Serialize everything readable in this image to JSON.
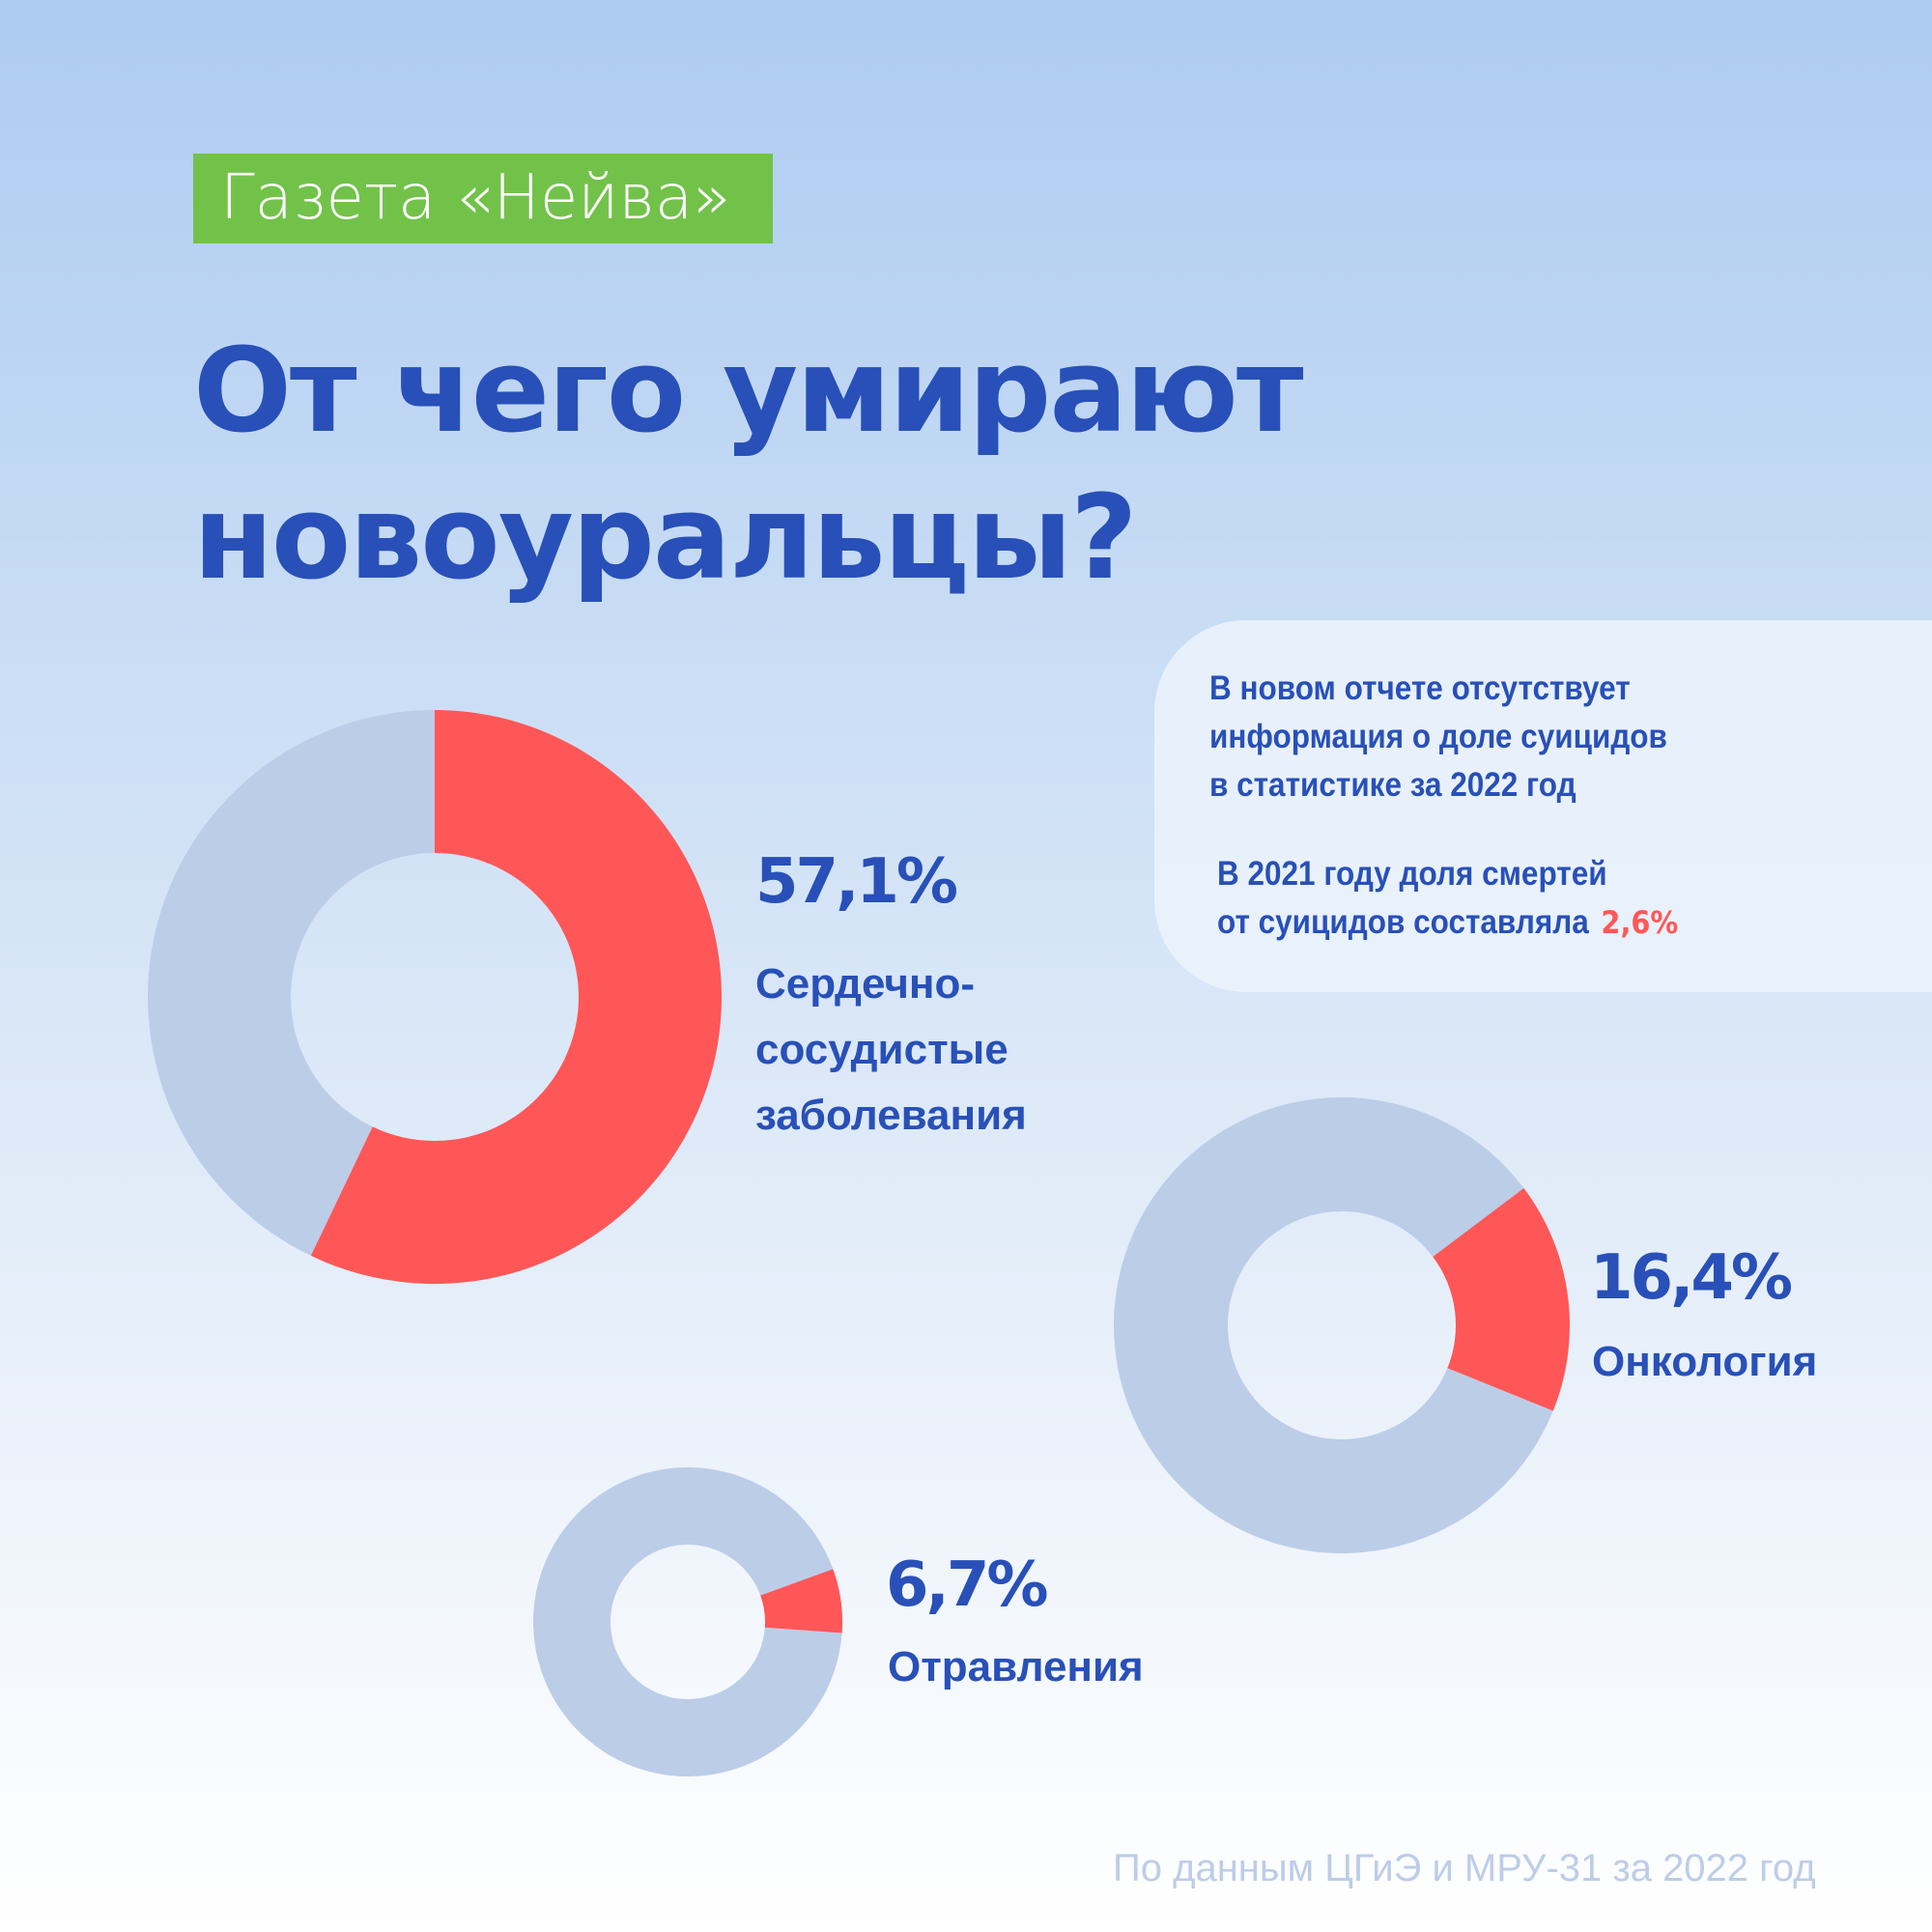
{
  "badge": "Газета «Нейва»",
  "title": [
    "От чего умирают",
    "новоуральцы?"
  ],
  "info": {
    "line1": [
      "В новом отчете отсутствует",
      "информация о доле суицидов",
      "в статистике за 2022 год"
    ],
    "line2": [
      "В 2021 году доля смертей",
      "от суицидов составляла"
    ],
    "suicide_pct": "2,6%"
  },
  "colors": {
    "highlight": "#ff5757",
    "rest": "#bccde8",
    "text": "#2850b8",
    "badge": "#72c24a"
  },
  "chart_data": [
    {
      "type": "pie",
      "style": "donut",
      "value": 57.1,
      "label_value": "57,1%",
      "label": [
        "Сердечно-",
        "сосудистые",
        "заболевания"
      ]
    },
    {
      "type": "pie",
      "style": "donut",
      "value": 16.4,
      "label_value": "16,4%",
      "label": [
        "Онкология"
      ]
    },
    {
      "type": "pie",
      "style": "donut",
      "value": 6.7,
      "label_value": "6,7%",
      "label": [
        "Отравления"
      ]
    }
  ],
  "footer": "По данным ЦГиЭ и МРУ-31 за 2022 год"
}
